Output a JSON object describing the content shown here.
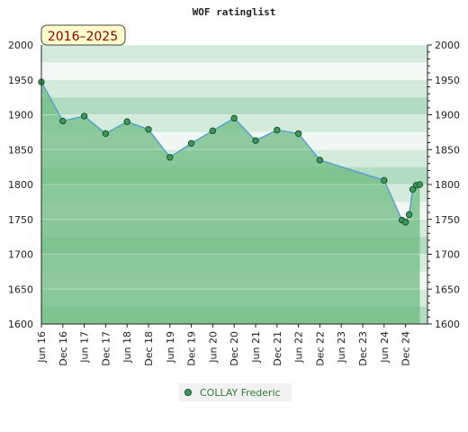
{
  "chart_data": {
    "type": "area",
    "title": "WOF ratinglist",
    "period_badge": "2016–2025",
    "ylim": [
      1600,
      2000
    ],
    "y_ticks": [
      "1600",
      "1650",
      "1700",
      "1750",
      "1800",
      "1850",
      "1900",
      "1950",
      "2000"
    ],
    "x_ticks": [
      "Jun 16",
      "Dec 16",
      "Jun 17",
      "Dec 17",
      "Jun 18",
      "Dec 18",
      "Jun 19",
      "Dec 19",
      "Jun 20",
      "Dec 20",
      "Jun 21",
      "Dec 21",
      "Jun 22",
      "Dec 22",
      "Jun 23",
      "Dec 23",
      "Jun 24",
      "Dec 24"
    ],
    "grid": true,
    "legend_position": "bottom-center",
    "colors": {
      "line": "#5aa0d0",
      "marker": "#3a9a5a",
      "area": "#6dbb82",
      "band_light": "#f1f8f3",
      "band_mid": "#d3ebda",
      "band_dark": "#b2dcc0",
      "badge_bg": "#ffffcc",
      "badge_text": "#8b0000",
      "legend_text": "#2e7d32"
    },
    "series": [
      {
        "name": "COLLAY Frederic",
        "points": [
          {
            "x": "2016-06",
            "y": 1947
          },
          {
            "x": "2016-12",
            "y": 1891
          },
          {
            "x": "2017-06",
            "y": 1898
          },
          {
            "x": "2017-12",
            "y": 1873
          },
          {
            "x": "2018-06",
            "y": 1890
          },
          {
            "x": "2018-12",
            "y": 1879
          },
          {
            "x": "2019-06",
            "y": 1839
          },
          {
            "x": "2019-12",
            "y": 1859
          },
          {
            "x": "2020-06",
            "y": 1877
          },
          {
            "x": "2020-12",
            "y": 1895
          },
          {
            "x": "2021-06",
            "y": 1863
          },
          {
            "x": "2021-12",
            "y": 1878
          },
          {
            "x": "2022-06",
            "y": 1873
          },
          {
            "x": "2022-12",
            "y": 1835
          },
          {
            "x": "2024-06",
            "y": 1806
          },
          {
            "x": "2024-11",
            "y": 1749
          },
          {
            "x": "2024-12",
            "y": 1746
          },
          {
            "x": "2025-01",
            "y": 1757
          },
          {
            "x": "2025-02",
            "y": 1793
          },
          {
            "x": "2025-03",
            "y": 1799
          },
          {
            "x": "2025-04",
            "y": 1800
          }
        ]
      }
    ]
  }
}
